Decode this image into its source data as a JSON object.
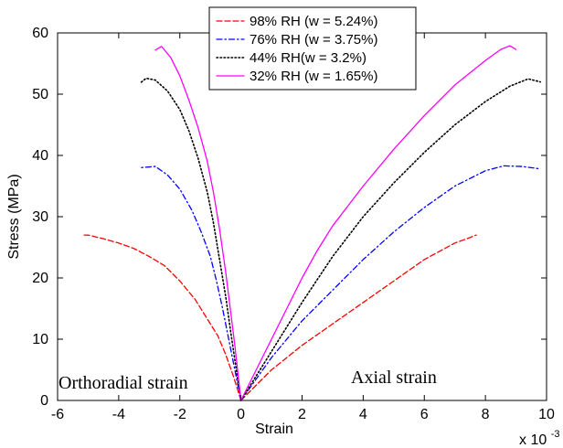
{
  "chart_data": {
    "type": "line",
    "xlabel": "Strain",
    "ylabel": "Stress (MPa)",
    "x_multiplier_label": {
      "prefix": "x 10",
      "exponent": "-3"
    },
    "xlim": [
      -6,
      10
    ],
    "ylim": [
      0,
      60
    ],
    "x_ticks": [
      -6,
      -4,
      -2,
      0,
      2,
      4,
      6,
      8,
      10
    ],
    "y_ticks": [
      0,
      10,
      20,
      30,
      40,
      50,
      60
    ],
    "x_tick_labels": [
      "-6",
      "-4",
      "-2",
      "0",
      "2",
      "4",
      "6",
      "8",
      "10"
    ],
    "y_tick_labels": [
      "0",
      "10",
      "20",
      "30",
      "40",
      "50",
      "60"
    ],
    "legend_position": "top-center",
    "annotations": [
      {
        "name": "annotation-orthoradial",
        "text": "Orthoradial strain"
      },
      {
        "name": "annotation-axial",
        "text": "Axial strain"
      }
    ],
    "series": [
      {
        "name": "98% RH (w = 5.24%)",
        "color": "#ff0000",
        "dash": "dashed",
        "orthoradial": {
          "x": [
            0,
            -0.25,
            -0.5,
            -0.75,
            -1.0,
            -1.5,
            -2.0,
            -2.5,
            -3.0,
            -3.5,
            -4.0,
            -4.5,
            -5.0,
            -5.2
          ],
          "y": [
            0,
            4.0,
            7.5,
            10.5,
            12.5,
            16.5,
            19.5,
            22.0,
            23.5,
            24.8,
            25.7,
            26.4,
            27.0,
            27.0
          ]
        },
        "axial": {
          "x": [
            0,
            0.5,
            1.0,
            1.5,
            2.0,
            3.0,
            4.0,
            5.0,
            6.0,
            7.0,
            7.5,
            7.7
          ],
          "y": [
            0,
            2.5,
            5.0,
            7.0,
            9.0,
            12.5,
            16.0,
            19.5,
            23.0,
            25.7,
            26.6,
            27.0
          ]
        }
      },
      {
        "name": "76% RH (w = 3.75%)",
        "color": "#0000ff",
        "dash": "dashdot",
        "orthoradial": {
          "x": [
            0,
            -0.2,
            -0.4,
            -0.6,
            -0.8,
            -1.0,
            -1.3,
            -1.6,
            -2.0,
            -2.4,
            -2.8,
            -3.3
          ],
          "y": [
            0,
            5.0,
            10.0,
            15.0,
            19.5,
            23.5,
            27.5,
            31.0,
            34.5,
            36.8,
            38.2,
            38.0
          ]
        },
        "axial": {
          "x": [
            0,
            0.5,
            1.0,
            2.0,
            3.0,
            4.0,
            5.0,
            6.0,
            7.0,
            8.0,
            8.6,
            9.2,
            9.8
          ],
          "y": [
            0,
            3.5,
            7.0,
            13.0,
            18.0,
            23.0,
            27.5,
            31.5,
            35.0,
            37.5,
            38.3,
            38.2,
            37.8
          ]
        }
      },
      {
        "name": "44% RH(w = 3.2%)",
        "color": "#000000",
        "dash": "dotted",
        "orthoradial": {
          "x": [
            0,
            -0.15,
            -0.3,
            -0.5,
            -0.7,
            -0.9,
            -1.1,
            -1.4,
            -1.7,
            -2.0,
            -2.4,
            -2.8,
            -3.1,
            -3.3
          ],
          "y": [
            0,
            5.0,
            10.0,
            17.0,
            23.0,
            29.0,
            34.0,
            39.5,
            44.0,
            47.5,
            50.5,
            52.3,
            52.6,
            51.8
          ]
        },
        "axial": {
          "x": [
            0,
            0.5,
            1.0,
            2.0,
            3.0,
            4.0,
            5.0,
            6.0,
            7.0,
            8.0,
            8.8,
            9.4,
            9.8
          ],
          "y": [
            0,
            4.0,
            8.0,
            16.0,
            23.5,
            30.0,
            35.5,
            40.5,
            45.0,
            48.8,
            51.3,
            52.5,
            52.0
          ]
        }
      },
      {
        "name": "32% RH (w = 1.65%)",
        "color": "#ff00ff",
        "dash": "solid",
        "orthoradial": {
          "x": [
            0,
            -0.1,
            -0.2,
            -0.35,
            -0.5,
            -0.7,
            -0.9,
            -1.1,
            -1.4,
            -1.7,
            -2.0,
            -2.3,
            -2.6,
            -2.8
          ],
          "y": [
            0,
            4.5,
            9.0,
            15.0,
            21.0,
            28.0,
            34.0,
            39.0,
            44.5,
            49.0,
            53.0,
            56.0,
            57.8,
            57.2
          ]
        },
        "axial": {
          "x": [
            0,
            0.5,
            1.0,
            1.5,
            2.0,
            2.5,
            3.0,
            4.0,
            5.0,
            6.0,
            7.0,
            8.0,
            8.5,
            8.8,
            9.0
          ],
          "y": [
            0,
            5.0,
            10.0,
            15.0,
            20.0,
            24.5,
            28.5,
            35.0,
            41.0,
            46.5,
            51.5,
            55.5,
            57.3,
            57.9,
            57.3
          ]
        }
      }
    ]
  }
}
